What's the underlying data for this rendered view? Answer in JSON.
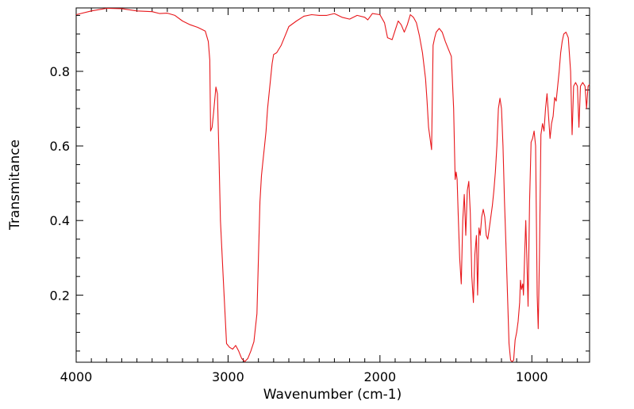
{
  "chart_data": {
    "type": "line",
    "title": "",
    "xlabel": "Wavenumber (cm-1)",
    "ylabel": "Transmitance",
    "xlim": [
      4000,
      620
    ],
    "ylim": [
      0.02,
      0.97
    ],
    "x_reversed": true,
    "grid": false,
    "line_color": "#e8171b",
    "x_ticks": [
      {
        "value": 4000,
        "label": "4000"
      },
      {
        "value": 3000,
        "label": "3000"
      },
      {
        "value": 2000,
        "label": "2000"
      },
      {
        "value": 1000,
        "label": "1000"
      }
    ],
    "y_ticks": [
      {
        "value": 0.2,
        "label": "0.2"
      },
      {
        "value": 0.4,
        "label": "0.4"
      },
      {
        "value": 0.6,
        "label": "0.6"
      },
      {
        "value": 0.8,
        "label": "0.8"
      }
    ],
    "series": [
      {
        "points": [
          [
            4000,
            0.952
          ],
          [
            3900,
            0.962
          ],
          [
            3800,
            0.969
          ],
          [
            3700,
            0.968
          ],
          [
            3600,
            0.962
          ],
          [
            3500,
            0.96
          ],
          [
            3450,
            0.955
          ],
          [
            3400,
            0.956
          ],
          [
            3350,
            0.95
          ],
          [
            3300,
            0.935
          ],
          [
            3250,
            0.925
          ],
          [
            3200,
            0.918
          ],
          [
            3150,
            0.908
          ],
          [
            3130,
            0.88
          ],
          [
            3120,
            0.83
          ],
          [
            3115,
            0.64
          ],
          [
            3105,
            0.65
          ],
          [
            3095,
            0.69
          ],
          [
            3080,
            0.758
          ],
          [
            3070,
            0.74
          ],
          [
            3060,
            0.58
          ],
          [
            3050,
            0.4
          ],
          [
            3030,
            0.23
          ],
          [
            3010,
            0.07
          ],
          [
            2990,
            0.06
          ],
          [
            2970,
            0.055
          ],
          [
            2950,
            0.065
          ],
          [
            2930,
            0.05
          ],
          [
            2910,
            0.03
          ],
          [
            2890,
            0.022
          ],
          [
            2870,
            0.03
          ],
          [
            2850,
            0.05
          ],
          [
            2830,
            0.075
          ],
          [
            2810,
            0.15
          ],
          [
            2800,
            0.3
          ],
          [
            2790,
            0.45
          ],
          [
            2780,
            0.52
          ],
          [
            2770,
            0.56
          ],
          [
            2760,
            0.6
          ],
          [
            2750,
            0.64
          ],
          [
            2740,
            0.7
          ],
          [
            2730,
            0.74
          ],
          [
            2720,
            0.78
          ],
          [
            2710,
            0.82
          ],
          [
            2700,
            0.845
          ],
          [
            2680,
            0.85
          ],
          [
            2650,
            0.87
          ],
          [
            2620,
            0.9
          ],
          [
            2600,
            0.92
          ],
          [
            2550,
            0.935
          ],
          [
            2500,
            0.948
          ],
          [
            2450,
            0.952
          ],
          [
            2400,
            0.95
          ],
          [
            2350,
            0.95
          ],
          [
            2300,
            0.955
          ],
          [
            2250,
            0.945
          ],
          [
            2200,
            0.94
          ],
          [
            2150,
            0.95
          ],
          [
            2100,
            0.945
          ],
          [
            2080,
            0.938
          ],
          [
            2050,
            0.955
          ],
          [
            2000,
            0.952
          ],
          [
            1970,
            0.93
          ],
          [
            1950,
            0.89
          ],
          [
            1920,
            0.885
          ],
          [
            1900,
            0.91
          ],
          [
            1880,
            0.935
          ],
          [
            1860,
            0.925
          ],
          [
            1840,
            0.905
          ],
          [
            1820,
            0.925
          ],
          [
            1800,
            0.952
          ],
          [
            1780,
            0.945
          ],
          [
            1760,
            0.93
          ],
          [
            1740,
            0.895
          ],
          [
            1720,
            0.85
          ],
          [
            1700,
            0.78
          ],
          [
            1690,
            0.72
          ],
          [
            1680,
            0.65
          ],
          [
            1670,
            0.62
          ],
          [
            1660,
            0.59
          ],
          [
            1650,
            0.87
          ],
          [
            1640,
            0.89
          ],
          [
            1630,
            0.905
          ],
          [
            1610,
            0.915
          ],
          [
            1590,
            0.905
          ],
          [
            1570,
            0.88
          ],
          [
            1550,
            0.86
          ],
          [
            1530,
            0.84
          ],
          [
            1515,
            0.7
          ],
          [
            1505,
            0.51
          ],
          [
            1498,
            0.53
          ],
          [
            1492,
            0.51
          ],
          [
            1485,
            0.42
          ],
          [
            1475,
            0.3
          ],
          [
            1465,
            0.23
          ],
          [
            1455,
            0.4
          ],
          [
            1445,
            0.47
          ],
          [
            1435,
            0.36
          ],
          [
            1425,
            0.48
          ],
          [
            1415,
            0.505
          ],
          [
            1405,
            0.42
          ],
          [
            1395,
            0.25
          ],
          [
            1385,
            0.18
          ],
          [
            1375,
            0.31
          ],
          [
            1365,
            0.36
          ],
          [
            1357,
            0.2
          ],
          [
            1348,
            0.38
          ],
          [
            1340,
            0.36
          ],
          [
            1330,
            0.41
          ],
          [
            1320,
            0.43
          ],
          [
            1310,
            0.41
          ],
          [
            1300,
            0.36
          ],
          [
            1290,
            0.35
          ],
          [
            1280,
            0.38
          ],
          [
            1270,
            0.41
          ],
          [
            1260,
            0.44
          ],
          [
            1250,
            0.48
          ],
          [
            1240,
            0.53
          ],
          [
            1230,
            0.6
          ],
          [
            1220,
            0.7
          ],
          [
            1210,
            0.728
          ],
          [
            1200,
            0.7
          ],
          [
            1190,
            0.6
          ],
          [
            1180,
            0.45
          ],
          [
            1170,
            0.33
          ],
          [
            1160,
            0.2
          ],
          [
            1150,
            0.07
          ],
          [
            1140,
            0.025
          ],
          [
            1130,
            0.022
          ],
          [
            1120,
            0.025
          ],
          [
            1110,
            0.08
          ],
          [
            1100,
            0.1
          ],
          [
            1090,
            0.13
          ],
          [
            1080,
            0.18
          ],
          [
            1075,
            0.24
          ],
          [
            1068,
            0.215
          ],
          [
            1060,
            0.23
          ],
          [
            1055,
            0.2
          ],
          [
            1048,
            0.3
          ],
          [
            1040,
            0.4
          ],
          [
            1032,
            0.29
          ],
          [
            1025,
            0.17
          ],
          [
            1015,
            0.45
          ],
          [
            1005,
            0.61
          ],
          [
            995,
            0.62
          ],
          [
            985,
            0.64
          ],
          [
            975,
            0.6
          ],
          [
            965,
            0.2
          ],
          [
            958,
            0.11
          ],
          [
            950,
            0.3
          ],
          [
            940,
            0.63
          ],
          [
            930,
            0.66
          ],
          [
            920,
            0.64
          ],
          [
            910,
            0.7
          ],
          [
            900,
            0.74
          ],
          [
            890,
            0.68
          ],
          [
            880,
            0.62
          ],
          [
            870,
            0.66
          ],
          [
            860,
            0.68
          ],
          [
            850,
            0.73
          ],
          [
            840,
            0.72
          ],
          [
            830,
            0.76
          ],
          [
            820,
            0.8
          ],
          [
            810,
            0.85
          ],
          [
            800,
            0.88
          ],
          [
            790,
            0.9
          ],
          [
            775,
            0.905
          ],
          [
            760,
            0.89
          ],
          [
            745,
            0.8
          ],
          [
            735,
            0.63
          ],
          [
            725,
            0.76
          ],
          [
            712,
            0.77
          ],
          [
            700,
            0.76
          ],
          [
            690,
            0.65
          ],
          [
            680,
            0.76
          ],
          [
            665,
            0.77
          ],
          [
            650,
            0.76
          ],
          [
            640,
            0.7
          ],
          [
            630,
            0.76
          ],
          [
            620,
            0.765
          ]
        ]
      }
    ]
  }
}
